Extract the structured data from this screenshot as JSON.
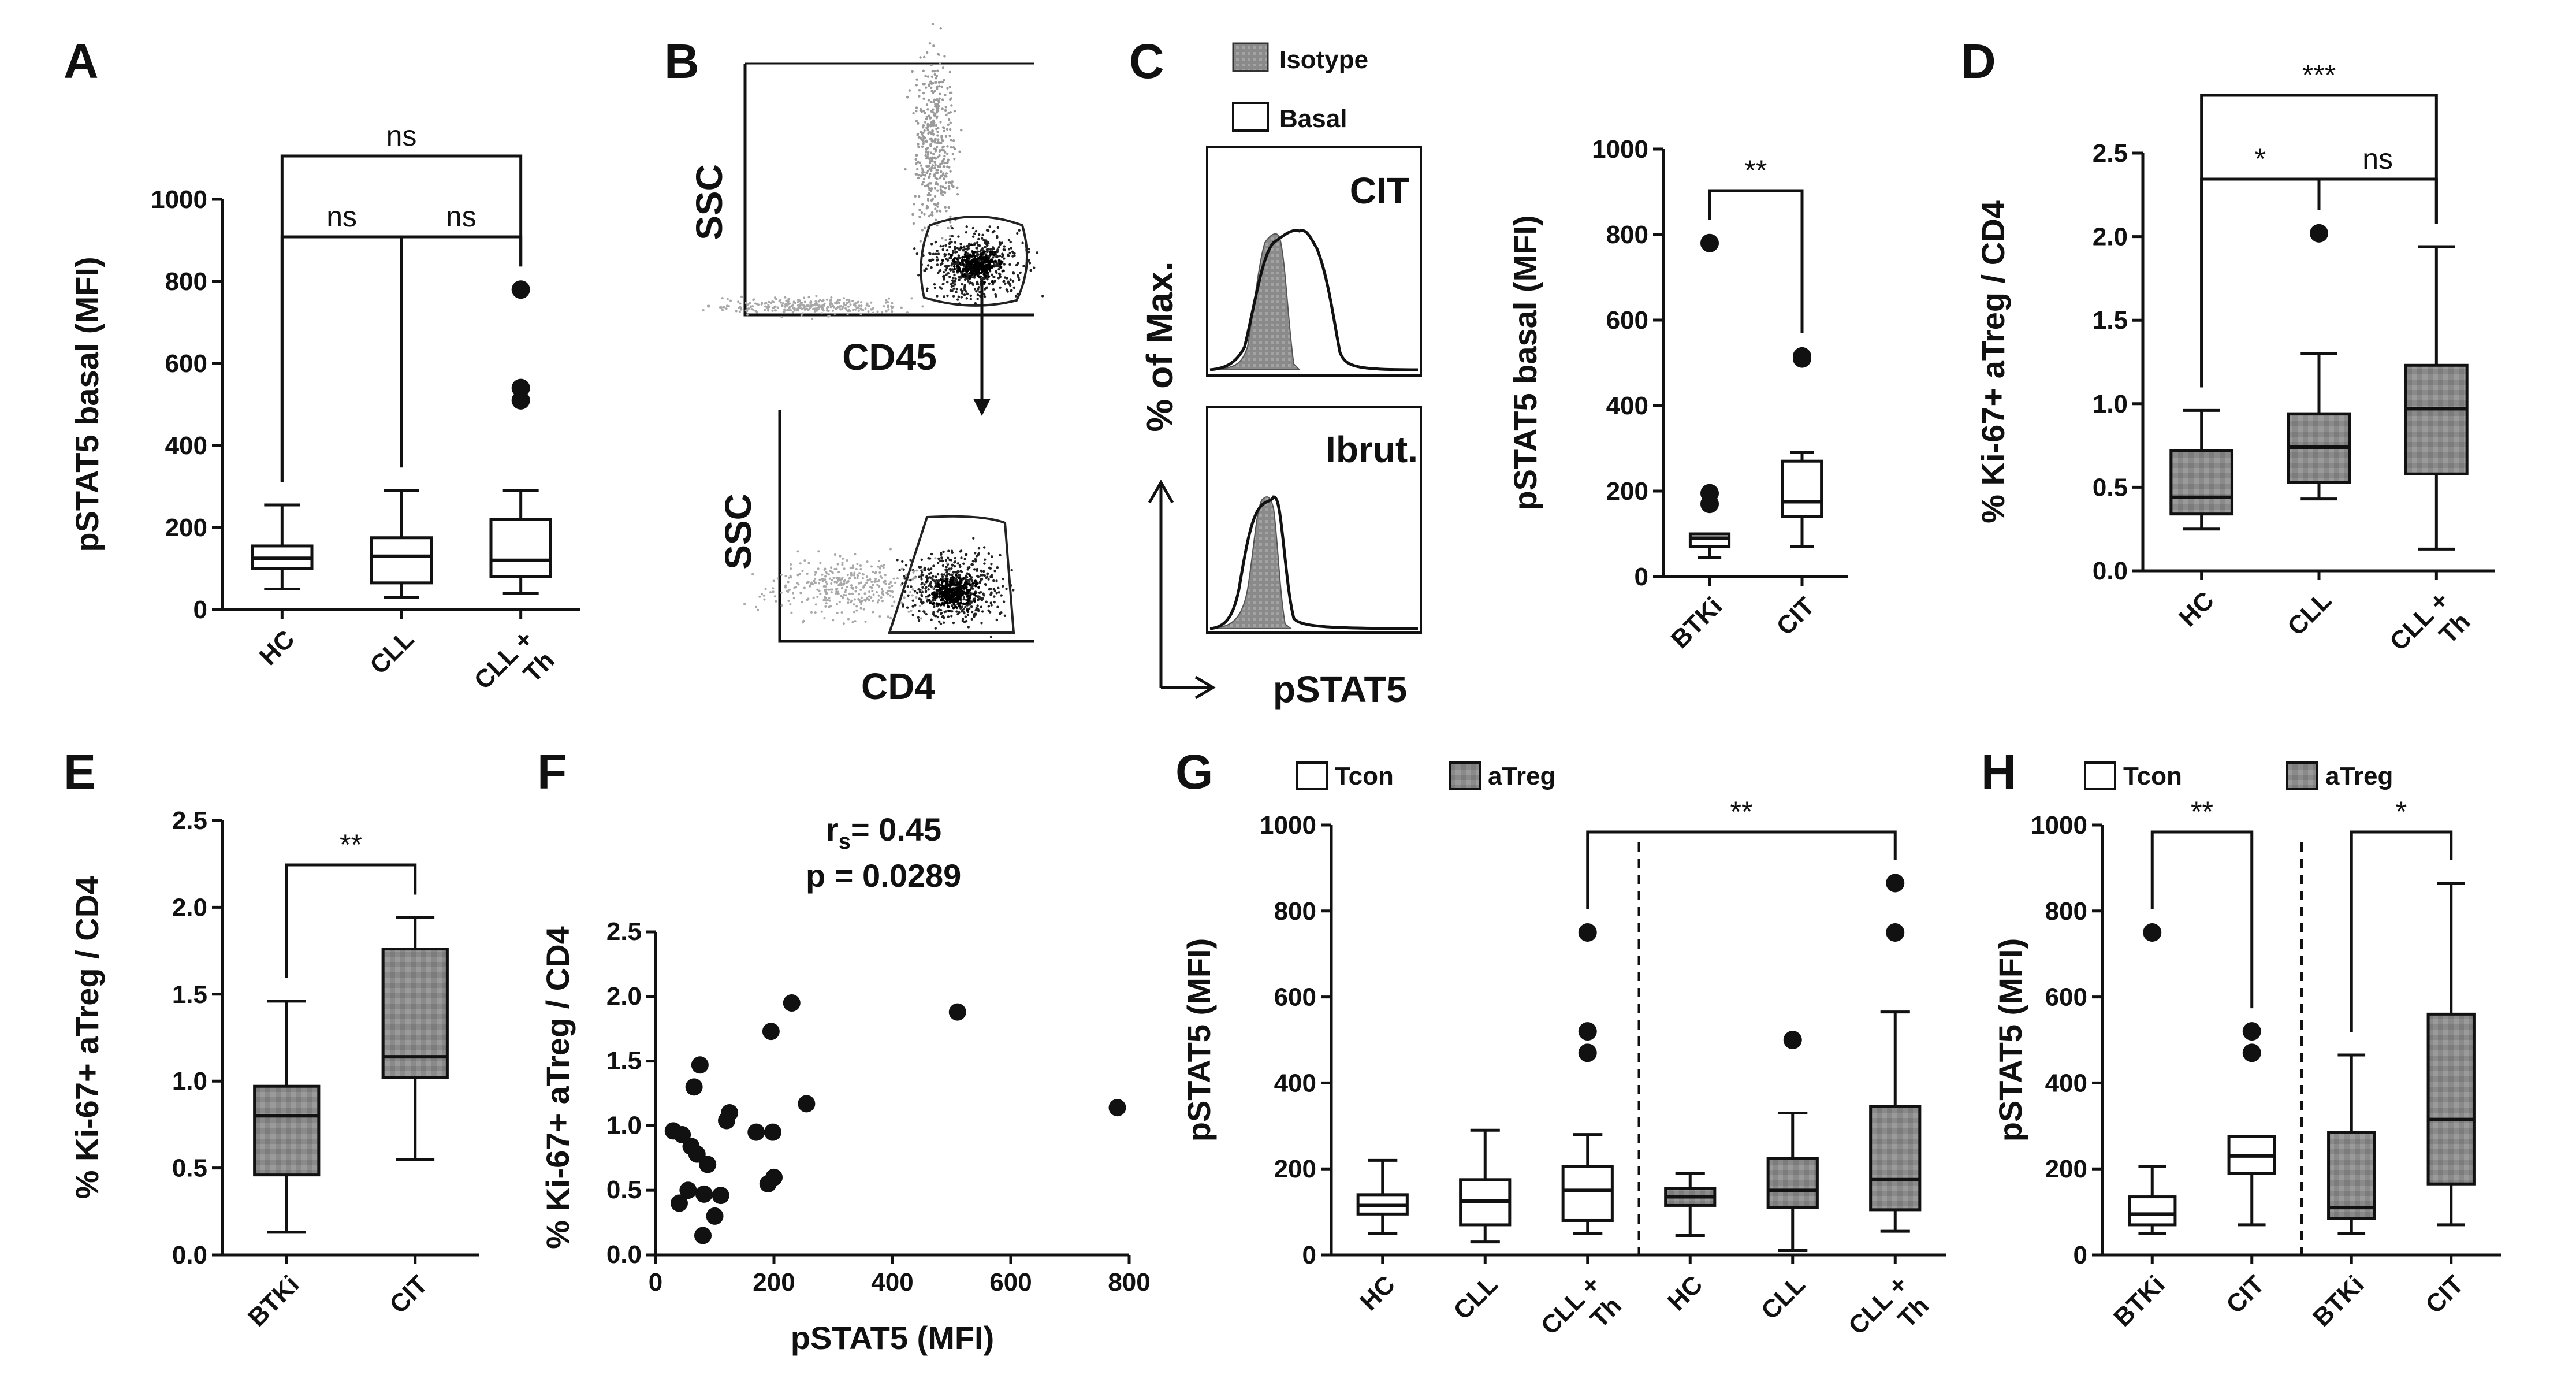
{
  "panel_letters": [
    "A",
    "B",
    "C",
    "D",
    "E",
    "F",
    "G",
    "H"
  ],
  "chart_data": [
    {
      "panel": "A",
      "type": "box",
      "title": "",
      "xlabel": "",
      "ylabel": "pSTAT5 basal (MFI)",
      "ylim": [
        0,
        1000
      ],
      "yticks": [
        "0",
        "200",
        "400",
        "600",
        "800",
        "1000"
      ],
      "categories": [
        "HC",
        "CLL",
        "CLL + Th"
      ],
      "cat_lines": [
        [
          "HC"
        ],
        [
          "CLL"
        ],
        [
          "CLL +",
          "Th"
        ]
      ],
      "boxes": [
        {
          "fill": "white",
          "min": 50,
          "q1": 100,
          "median": 125,
          "q3": 155,
          "max": 255,
          "outliers": []
        },
        {
          "fill": "white",
          "min": 30,
          "q1": 65,
          "median": 130,
          "q3": 175,
          "max": 290,
          "outliers": []
        },
        {
          "fill": "white",
          "min": 40,
          "q1": 80,
          "median": 120,
          "q3": 220,
          "max": 290,
          "outliers": [
            510,
            540,
            780
          ]
        }
      ],
      "comparisons": [
        {
          "groups": [
            1,
            2
          ],
          "label": "ns",
          "level": 1
        },
        {
          "groups": [
            2,
            3
          ],
          "label": "ns",
          "level": 1
        },
        {
          "groups": [
            1,
            3
          ],
          "label": "ns",
          "level": 2
        }
      ]
    },
    {
      "panel": "B",
      "type": "flow_gating",
      "plots": [
        {
          "ylabel": "SSC",
          "xlabel": "CD45"
        },
        {
          "ylabel": "SSC",
          "xlabel": "CD4"
        }
      ]
    },
    {
      "panel": "C",
      "type": "histogram_overlay",
      "legend": [
        "Isotype",
        "Basal"
      ],
      "histograms": [
        {
          "label": "CIT"
        },
        {
          "label": "Ibrut."
        }
      ],
      "ylabel": "% of Max.",
      "xlabel": "pSTAT5"
    },
    {
      "panel": "C",
      "type": "box",
      "title": "",
      "xlabel": "",
      "ylabel": "pSTAT5 basal (MFI)",
      "ylim": [
        0,
        1000
      ],
      "yticks": [
        "0",
        "200",
        "400",
        "600",
        "800",
        "1000"
      ],
      "categories": [
        "BTKi",
        "CIT"
      ],
      "cat_lines": [
        [
          "BTKi"
        ],
        [
          "CIT"
        ]
      ],
      "boxes": [
        {
          "fill": "white",
          "min": 45,
          "q1": 70,
          "median": 90,
          "q3": 100,
          "max": 100,
          "outliers": [
            170,
            195,
            780
          ]
        },
        {
          "fill": "white",
          "min": 70,
          "q1": 140,
          "median": 175,
          "q3": 270,
          "max": 290,
          "outliers": [
            510,
            515
          ]
        }
      ],
      "comparisons": [
        {
          "groups": [
            1,
            2
          ],
          "label": "**",
          "level": 1
        }
      ]
    },
    {
      "panel": "D",
      "type": "box",
      "title": "",
      "xlabel": "",
      "ylabel": "% Ki-67+ aTreg / CD4",
      "ylim": [
        0,
        2.5
      ],
      "yticks": [
        "0.0",
        "0.5",
        "1.0",
        "1.5",
        "2.0",
        "2.5"
      ],
      "categories": [
        "HC",
        "CLL",
        "CLL + Th"
      ],
      "cat_lines": [
        [
          "HC"
        ],
        [
          "CLL"
        ],
        [
          "CLL +",
          "Th"
        ]
      ],
      "boxes": [
        {
          "fill": "gray",
          "min": 0.25,
          "q1": 0.34,
          "median": 0.44,
          "q3": 0.72,
          "max": 0.96,
          "outliers": []
        },
        {
          "fill": "gray",
          "min": 0.43,
          "q1": 0.53,
          "median": 0.74,
          "q3": 0.94,
          "max": 1.3,
          "outliers": [
            2.02
          ]
        },
        {
          "fill": "gray",
          "min": 0.13,
          "q1": 0.58,
          "median": 0.97,
          "q3": 1.23,
          "max": 1.94,
          "outliers": []
        }
      ],
      "comparisons": [
        {
          "groups": [
            1,
            2
          ],
          "label": "*",
          "level": 1
        },
        {
          "groups": [
            2,
            3
          ],
          "label": "ns",
          "level": 1
        },
        {
          "groups": [
            1,
            3
          ],
          "label": "***",
          "level": 2
        }
      ]
    },
    {
      "panel": "E",
      "type": "box",
      "title": "",
      "xlabel": "",
      "ylabel": "% Ki-67+ aTreg / CD4",
      "ylim": [
        0,
        2.5
      ],
      "yticks": [
        "0.0",
        "0.5",
        "1.0",
        "1.5",
        "2.0",
        "2.5"
      ],
      "categories": [
        "BTKi",
        "CIT"
      ],
      "cat_lines": [
        [
          "BTKi"
        ],
        [
          "CIT"
        ]
      ],
      "boxes": [
        {
          "fill": "gray",
          "min": 0.13,
          "q1": 0.46,
          "median": 0.8,
          "q3": 0.97,
          "max": 1.46,
          "outliers": []
        },
        {
          "fill": "gray",
          "min": 0.55,
          "q1": 1.02,
          "median": 1.14,
          "q3": 1.76,
          "max": 1.94,
          "outliers": []
        }
      ],
      "comparisons": [
        {
          "groups": [
            1,
            2
          ],
          "label": "**",
          "level": 1
        }
      ]
    },
    {
      "panel": "F",
      "type": "scatter",
      "title": "",
      "xlabel": "pSTAT5 (MFI)",
      "ylabel": "% Ki-67+ aTreg / CD4",
      "xlim": [
        0,
        800
      ],
      "ylim": [
        0,
        2.5
      ],
      "xticks": [
        "0",
        "200",
        "400",
        "600",
        "800"
      ],
      "yticks": [
        "0.0",
        "0.5",
        "1.0",
        "1.5",
        "2.0",
        "2.5"
      ],
      "annotation_r": "r",
      "annotation_r_sub": "s",
      "annotation_r_val": "= 0.45",
      "annotation_p": "p = 0.0289",
      "points": [
        [
          30,
          0.96
        ],
        [
          40,
          0.4
        ],
        [
          45,
          0.93
        ],
        [
          55,
          0.5
        ],
        [
          60,
          0.84
        ],
        [
          65,
          1.3
        ],
        [
          70,
          0.78
        ],
        [
          75,
          1.47
        ],
        [
          80,
          0.15
        ],
        [
          82,
          0.47
        ],
        [
          88,
          0.7
        ],
        [
          100,
          0.3
        ],
        [
          110,
          0.46
        ],
        [
          120,
          1.04
        ],
        [
          125,
          1.1
        ],
        [
          170,
          0.95
        ],
        [
          190,
          0.55
        ],
        [
          195,
          1.73
        ],
        [
          198,
          0.95
        ],
        [
          200,
          0.6
        ],
        [
          230,
          1.95
        ],
        [
          255,
          1.17
        ],
        [
          510,
          1.88
        ],
        [
          780,
          1.14
        ]
      ]
    },
    {
      "panel": "G",
      "type": "box",
      "title": "",
      "xlabel": "",
      "ylabel": "pSTAT5 (MFI)",
      "legend": [
        {
          "label": "Tcon",
          "fill": "white"
        },
        {
          "label": "aTreg",
          "fill": "gray"
        }
      ],
      "ylim": [
        0,
        1000
      ],
      "yticks": [
        "0",
        "200",
        "400",
        "600",
        "800",
        "1000"
      ],
      "categories": [
        "HC",
        "CLL",
        "CLL + Th",
        "HC",
        "CLL",
        "CLL + Th"
      ],
      "cat_lines": [
        [
          "HC"
        ],
        [
          "CLL"
        ],
        [
          "CLL +",
          "Th"
        ],
        [
          "HC"
        ],
        [
          "CLL"
        ],
        [
          "CLL +",
          "Th"
        ]
      ],
      "divider_after": 3,
      "boxes": [
        {
          "fill": "white",
          "min": 50,
          "q1": 95,
          "median": 115,
          "q3": 140,
          "max": 220,
          "outliers": []
        },
        {
          "fill": "white",
          "min": 30,
          "q1": 70,
          "median": 125,
          "q3": 175,
          "max": 290,
          "outliers": []
        },
        {
          "fill": "white",
          "min": 50,
          "q1": 80,
          "median": 150,
          "q3": 205,
          "max": 280,
          "outliers": [
            470,
            520,
            750
          ]
        },
        {
          "fill": "gray",
          "min": 45,
          "q1": 115,
          "median": 135,
          "q3": 155,
          "max": 190,
          "outliers": []
        },
        {
          "fill": "gray",
          "min": 10,
          "q1": 110,
          "median": 150,
          "q3": 225,
          "max": 330,
          "outliers": [
            500
          ]
        },
        {
          "fill": "gray",
          "min": 55,
          "q1": 105,
          "median": 175,
          "q3": 345,
          "max": 565,
          "outliers": [
            750,
            865
          ]
        }
      ],
      "comparisons": [
        {
          "groups": [
            3,
            6
          ],
          "label": "**",
          "level": 1
        }
      ]
    },
    {
      "panel": "H",
      "type": "box",
      "title": "",
      "xlabel": "",
      "ylabel": "pSTAT5 (MFI)",
      "legend": [
        {
          "label": "Tcon",
          "fill": "white"
        },
        {
          "label": "aTreg",
          "fill": "gray"
        }
      ],
      "ylim": [
        0,
        1000
      ],
      "yticks": [
        "0",
        "200",
        "400",
        "600",
        "800",
        "1000"
      ],
      "categories": [
        "BTKi",
        "CIT",
        "BTKi",
        "CIT"
      ],
      "cat_lines": [
        [
          "BTKi"
        ],
        [
          "CIT"
        ],
        [
          "BTKi"
        ],
        [
          "CIT"
        ]
      ],
      "divider_after": 2,
      "boxes": [
        {
          "fill": "white",
          "min": 50,
          "q1": 70,
          "median": 95,
          "q3": 135,
          "max": 205,
          "outliers": [
            750
          ]
        },
        {
          "fill": "white",
          "min": 70,
          "q1": 190,
          "median": 230,
          "q3": 275,
          "max": 275,
          "outliers": [
            470,
            520
          ]
        },
        {
          "fill": "gray",
          "min": 50,
          "q1": 85,
          "median": 110,
          "q3": 285,
          "max": 465,
          "outliers": []
        },
        {
          "fill": "gray",
          "min": 70,
          "q1": 165,
          "median": 315,
          "q3": 560,
          "max": 865,
          "outliers": []
        }
      ],
      "comparisons": [
        {
          "groups": [
            1,
            2
          ],
          "label": "**",
          "level": 1
        },
        {
          "groups": [
            3,
            4
          ],
          "label": "*",
          "level": 1
        }
      ]
    }
  ]
}
